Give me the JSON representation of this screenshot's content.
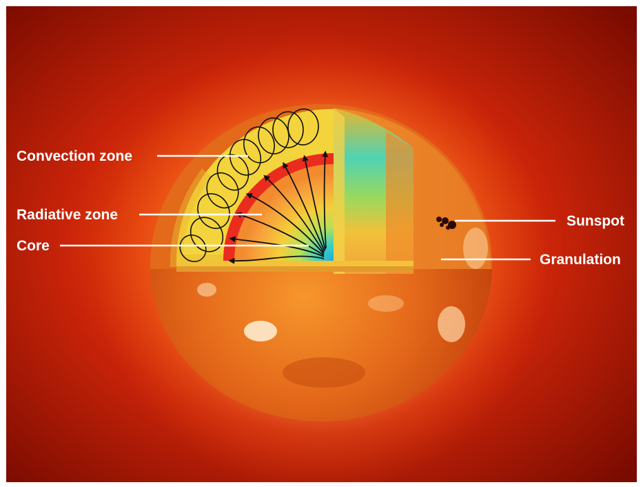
{
  "labels": {
    "convection": "Convection zone",
    "radiative": "Radiative zone",
    "core": "Core",
    "sunspot": "Sunspot",
    "granulation": "Granulation"
  },
  "colors": {
    "background_dark": "#8a0f00",
    "background_glow": "#e83a08",
    "surface": "#e06b14",
    "convection_zone": "#f1d63a",
    "radiative_zone": "#ec3020",
    "core": "#2fc9c8",
    "label_text": "#ffffff"
  }
}
